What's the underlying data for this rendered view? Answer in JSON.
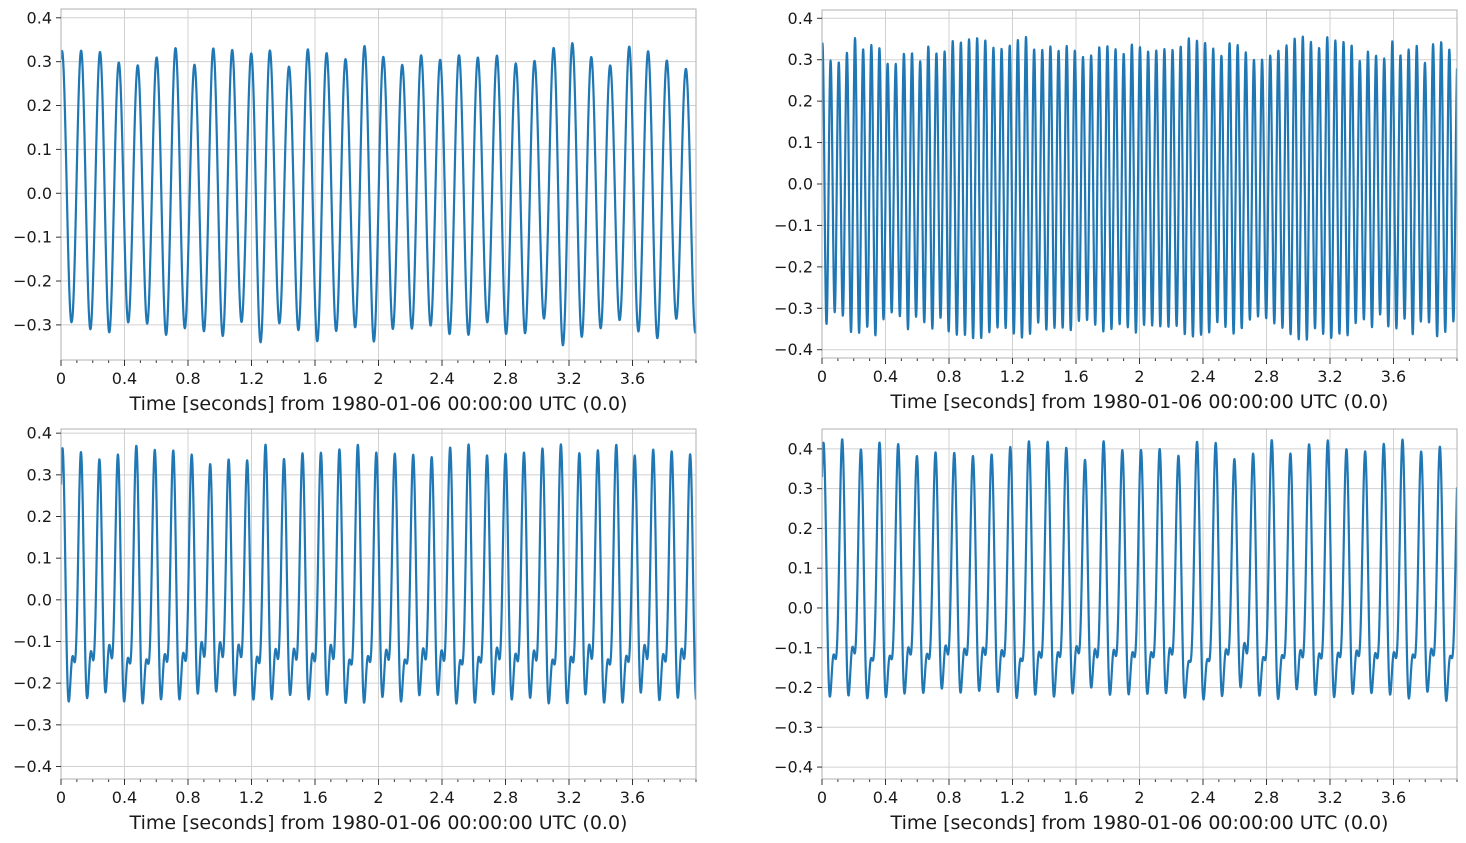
{
  "chart_data": [
    {
      "type": "line",
      "xlabel": "Time [seconds] from 1980-01-06 00:00:00 UTC (0.0)",
      "ylabel": "",
      "xlim": [
        0,
        4
      ],
      "ylim": [
        -0.38,
        0.42
      ],
      "x_ticks": [
        0,
        0.4,
        0.8,
        1.2,
        1.6,
        2,
        2.4,
        2.8,
        3.2,
        3.6
      ],
      "x_tick_labels": [
        "0",
        "0.4",
        "0.8",
        "1.2",
        "1.6",
        "2",
        "2.4",
        "2.8",
        "3.2",
        "3.6"
      ],
      "y_ticks": [
        -0.3,
        -0.2,
        -0.1,
        0.0,
        0.1,
        0.2,
        0.3,
        0.4
      ],
      "y_tick_labels": [
        "−0.3",
        "−0.2",
        "−0.1",
        "0.0",
        "0.1",
        "0.2",
        "0.3",
        "0.4"
      ],
      "grid": true,
      "signal": {
        "cycles_per_second": 8.4,
        "amplitude": 0.31,
        "second_cycles_per_second": 0,
        "second_amplitude": 0,
        "offset": 0.0
      },
      "series": [
        {
          "values_description": "oscillation",
          "color": "#1f77b4"
        }
      ]
    },
    {
      "type": "line",
      "xlabel": "Time [seconds] from 1980-01-06 00:00:00 UTC (0.0)",
      "ylabel": "",
      "xlim": [
        0,
        4
      ],
      "ylim": [
        -0.42,
        0.42
      ],
      "x_ticks": [
        0,
        0.4,
        0.8,
        1.2,
        1.6,
        2,
        2.4,
        2.8,
        3.2,
        3.6
      ],
      "x_tick_labels": [
        "0",
        "0.4",
        "0.8",
        "1.2",
        "1.6",
        "2",
        "2.4",
        "2.8",
        "3.2",
        "3.6"
      ],
      "y_ticks": [
        -0.4,
        -0.3,
        -0.2,
        -0.1,
        0.0,
        0.1,
        0.2,
        0.3,
        0.4
      ],
      "y_tick_labels": [
        "−0.4",
        "−0.3",
        "−0.2",
        "−0.1",
        "0.0",
        "0.1",
        "0.2",
        "0.3",
        "0.4"
      ],
      "grid": true,
      "signal": {
        "cycles_per_second": 19.5,
        "amplitude": 0.33,
        "second_cycles_per_second": 0,
        "second_amplitude": 0,
        "offset": -0.01
      },
      "series": [
        {
          "color": "#1f77b4"
        }
      ]
    },
    {
      "type": "line",
      "xlabel": "Time [seconds] from 1980-01-06 00:00:00 UTC (0.0)",
      "ylabel": "",
      "xlim": [
        0,
        4
      ],
      "ylim": [
        -0.43,
        0.41
      ],
      "x_ticks": [
        0,
        0.4,
        0.8,
        1.2,
        1.6,
        2,
        2.4,
        2.8,
        3.2,
        3.6
      ],
      "x_tick_labels": [
        "0",
        "0.4",
        "0.8",
        "1.2",
        "1.6",
        "2",
        "2.4",
        "2.8",
        "3.2",
        "3.6"
      ],
      "y_ticks": [
        -0.4,
        -0.3,
        -0.2,
        -0.1,
        0.0,
        0.1,
        0.2,
        0.3,
        0.4
      ],
      "y_tick_labels": [
        "−0.4",
        "−0.3",
        "−0.2",
        "−0.1",
        "0.0",
        "0.1",
        "0.2",
        "0.3",
        "0.4"
      ],
      "grid": true,
      "signal": {
        "cycles_per_second": 8.6,
        "amplitude": 0.24,
        "second_cycles_per_second": 17.2,
        "second_amplitude": 0.12,
        "offset": -0.01
      },
      "series": [
        {
          "color": "#1f77b4"
        }
      ]
    },
    {
      "type": "line",
      "xlabel": "Time [seconds] from 1980-01-06 00:00:00 UTC (0.0)",
      "ylabel": "",
      "xlim": [
        0,
        4
      ],
      "ylim": [
        -0.43,
        0.45
      ],
      "x_ticks": [
        0,
        0.4,
        0.8,
        1.2,
        1.6,
        2,
        2.4,
        2.8,
        3.2,
        3.6
      ],
      "x_tick_labels": [
        "0",
        "0.4",
        "0.8",
        "1.2",
        "1.6",
        "2",
        "2.4",
        "2.8",
        "3.2",
        "3.6"
      ],
      "y_ticks": [
        -0.4,
        -0.3,
        -0.2,
        -0.1,
        0.0,
        0.1,
        0.2,
        0.3,
        0.4
      ],
      "y_tick_labels": [
        "−0.4",
        "−0.3",
        "−0.2",
        "−0.1",
        "0.0",
        "0.1",
        "0.2",
        "0.3",
        "0.4"
      ],
      "grid": true,
      "signal": {
        "cycles_per_second": 8.5,
        "amplitude": 0.26,
        "second_cycles_per_second": 17.0,
        "second_amplitude": 0.12,
        "offset": 0.02
      },
      "series": [
        {
          "color": "#1f77b4"
        }
      ]
    }
  ]
}
